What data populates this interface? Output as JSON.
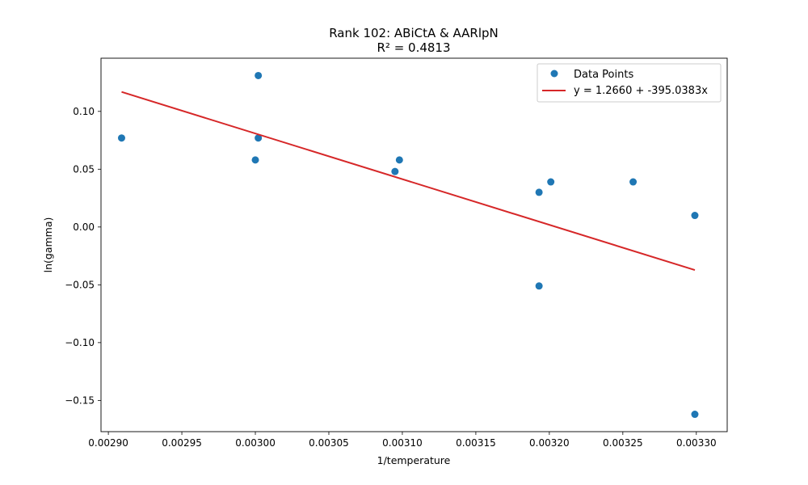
{
  "chart_data": {
    "type": "scatter",
    "title": "Rank 102: ABiCtA & AARlpN",
    "subtitle": "R² = 0.4813",
    "xlabel": "1/temperature",
    "ylabel": "ln(gamma)",
    "xlim": [
      0.002895,
      0.003321
    ],
    "ylim": [
      -0.177,
      0.146
    ],
    "x_ticks": [
      0.0029,
      0.00295,
      0.003,
      0.00305,
      0.0031,
      0.00315,
      0.0032,
      0.00325,
      0.0033
    ],
    "x_tick_labels": [
      "0.00290",
      "0.00295",
      "0.00300",
      "0.00305",
      "0.00310",
      "0.00315",
      "0.00320",
      "0.00325",
      "0.00330"
    ],
    "y_ticks": [
      -0.15,
      -0.1,
      -0.05,
      0.0,
      0.05,
      0.1
    ],
    "y_tick_labels": [
      "−0.15",
      "−0.10",
      "−0.05",
      "0.00",
      "0.05",
      "0.10"
    ],
    "legend_position": "top-right",
    "grid": false,
    "series": [
      {
        "name": "Data Points",
        "kind": "scatter",
        "color": "#1f77b4",
        "points": [
          {
            "x": 0.002909,
            "y": 0.077
          },
          {
            "x": 0.003,
            "y": 0.058
          },
          {
            "x": 0.003002,
            "y": 0.131
          },
          {
            "x": 0.003002,
            "y": 0.077
          },
          {
            "x": 0.003095,
            "y": 0.048
          },
          {
            "x": 0.003098,
            "y": 0.058
          },
          {
            "x": 0.003193,
            "y": 0.03
          },
          {
            "x": 0.003193,
            "y": -0.051
          },
          {
            "x": 0.003201,
            "y": 0.039
          },
          {
            "x": 0.003257,
            "y": 0.039
          },
          {
            "x": 0.003299,
            "y": 0.01
          },
          {
            "x": 0.003299,
            "y": -0.162
          }
        ]
      },
      {
        "name": "y = 1.2660 + -395.0383x",
        "kind": "line",
        "color": "#d62728",
        "intercept": 1.266,
        "slope": -395.0383,
        "x_range": [
          0.002909,
          0.003299
        ]
      }
    ]
  }
}
